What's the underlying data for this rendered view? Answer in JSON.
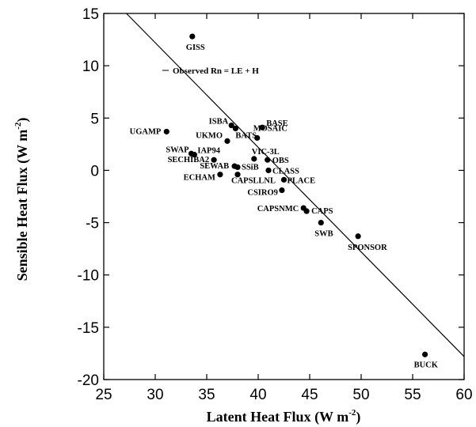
{
  "chart_data": {
    "type": "scatter",
    "xlabel": "Latent Heat Flux (W m",
    "xlabel_sup": "-2",
    "xlabel_tail": ")",
    "ylabel": "Sensible Heat Flux (W m",
    "ylabel_sup": "-2",
    "ylabel_tail": ")",
    "xlim": [
      25,
      60
    ],
    "ylim": [
      -20,
      15
    ],
    "xticks": [
      25,
      30,
      35,
      40,
      45,
      50,
      55,
      60
    ],
    "yticks": [
      -20,
      -15,
      -10,
      -5,
      0,
      5,
      10,
      15
    ],
    "grid": false,
    "line": {
      "label": "Observed Rn = LE + H",
      "x": [
        25,
        60
      ],
      "y": [
        17.2,
        -17.8
      ]
    },
    "points": [
      {
        "name": "GISS",
        "x": 33.6,
        "y": 12.8
      },
      {
        "name": "UGAMP",
        "x": 31.1,
        "y": 3.7
      },
      {
        "name": "ISBA",
        "x": 37.4,
        "y": 4.3
      },
      {
        "name": "BASE",
        "x": 40.4,
        "y": 4.1
      },
      {
        "name": "UKMO",
        "x": 37.0,
        "y": 2.8
      },
      {
        "name": "MOSAIC",
        "x": 39.9,
        "y": 3.1
      },
      {
        "name": "BATS",
        "x": 37.8,
        "y": 4.0
      },
      {
        "name": "SWAP",
        "x": 33.5,
        "y": 1.6
      },
      {
        "name": "IAP94",
        "x": 33.8,
        "y": 1.5
      },
      {
        "name": "SECHIBA2",
        "x": 35.7,
        "y": 1.0
      },
      {
        "name": "VIC-3L",
        "x": 39.6,
        "y": 1.1
      },
      {
        "name": "OBS",
        "x": 40.9,
        "y": 1.0
      },
      {
        "name": "SEWAB",
        "x": 37.7,
        "y": 0.4
      },
      {
        "name": "SSiB",
        "x": 38.0,
        "y": 0.3
      },
      {
        "name": "CLASS",
        "x": 41.0,
        "y": 0.0
      },
      {
        "name": "ECHAM",
        "x": 36.3,
        "y": -0.4
      },
      {
        "name": "CAPSLLNL",
        "x": 38.0,
        "y": -0.4
      },
      {
        "name": "PLACE",
        "x": 42.5,
        "y": -0.9
      },
      {
        "name": "CSIRO9",
        "x": 42.3,
        "y": -1.9
      },
      {
        "name": "CAPSNMC",
        "x": 44.4,
        "y": -3.6
      },
      {
        "name": "CAPS",
        "x": 44.7,
        "y": -3.9
      },
      {
        "name": "SWB",
        "x": 46.1,
        "y": -5.0
      },
      {
        "name": "SPONSOR",
        "x": 49.7,
        "y": -6.3
      },
      {
        "name": "BUCK",
        "x": 56.2,
        "y": -17.6
      }
    ]
  }
}
